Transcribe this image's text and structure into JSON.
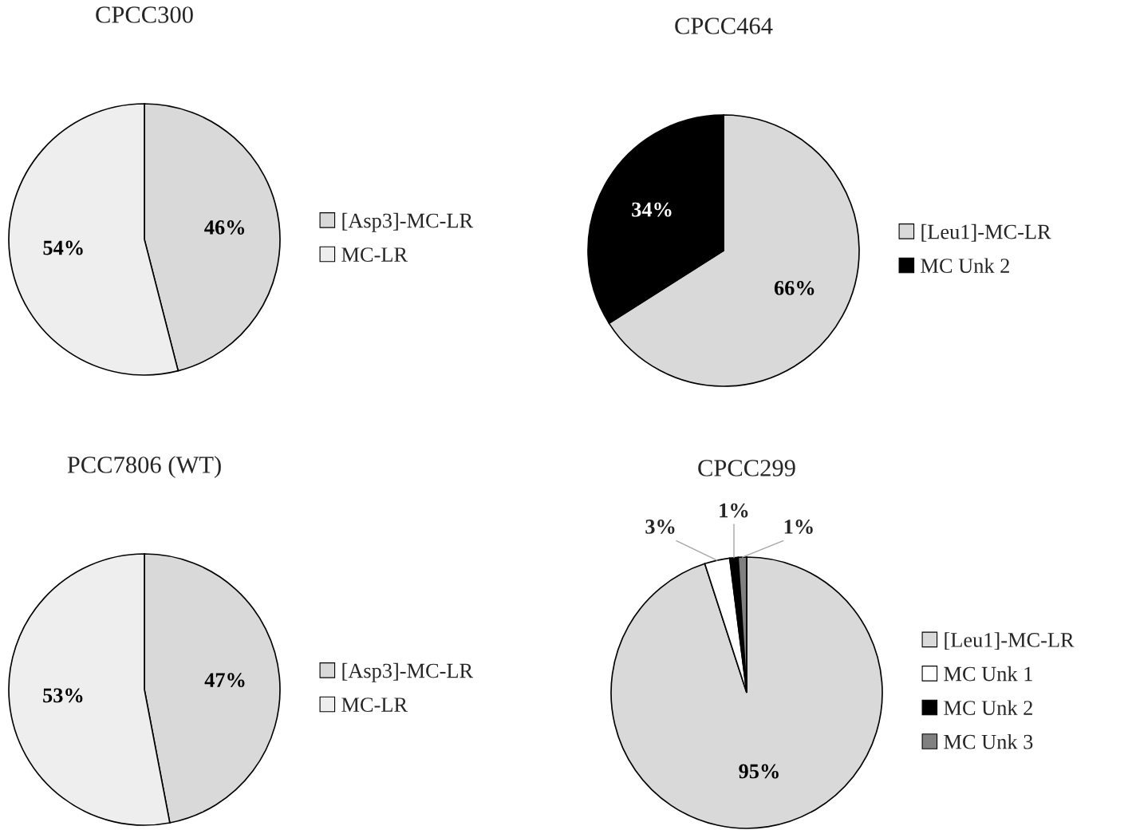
{
  "chart_data": [
    {
      "type": "pie",
      "title": "CPCC300",
      "categories": [
        "[Asp3]-MC-LR",
        "MC-LR"
      ],
      "values": [
        46,
        54
      ],
      "value_labels": [
        "46%",
        "54%"
      ],
      "colors": [
        "#d9d9d9",
        "#eeeeee"
      ],
      "legend": "right"
    },
    {
      "type": "pie",
      "title": "CPCC464",
      "categories": [
        "[Leu1]-MC-LR",
        "MC Unk 2"
      ],
      "values": [
        66,
        34
      ],
      "value_labels": [
        "66%",
        "34%"
      ],
      "colors": [
        "#d9d9d9",
        "#000000"
      ],
      "legend": "right"
    },
    {
      "type": "pie",
      "title": "PCC7806 (WT)",
      "categories": [
        "[Asp3]-MC-LR",
        "MC-LR"
      ],
      "values": [
        47,
        53
      ],
      "value_labels": [
        "47%",
        "53%"
      ],
      "colors": [
        "#d9d9d9",
        "#eeeeee"
      ],
      "legend": "right"
    },
    {
      "type": "pie",
      "title": "CPCC299",
      "categories": [
        "[Leu1]-MC-LR",
        "MC Unk 1",
        "MC Unk 2",
        "MC Unk 3"
      ],
      "values": [
        95,
        3,
        1,
        1
      ],
      "value_labels": [
        "95%",
        "3%",
        "1%",
        "1%"
      ],
      "colors": [
        "#d9d9d9",
        "#ffffff",
        "#000000",
        "#808080"
      ],
      "legend": "right"
    }
  ]
}
